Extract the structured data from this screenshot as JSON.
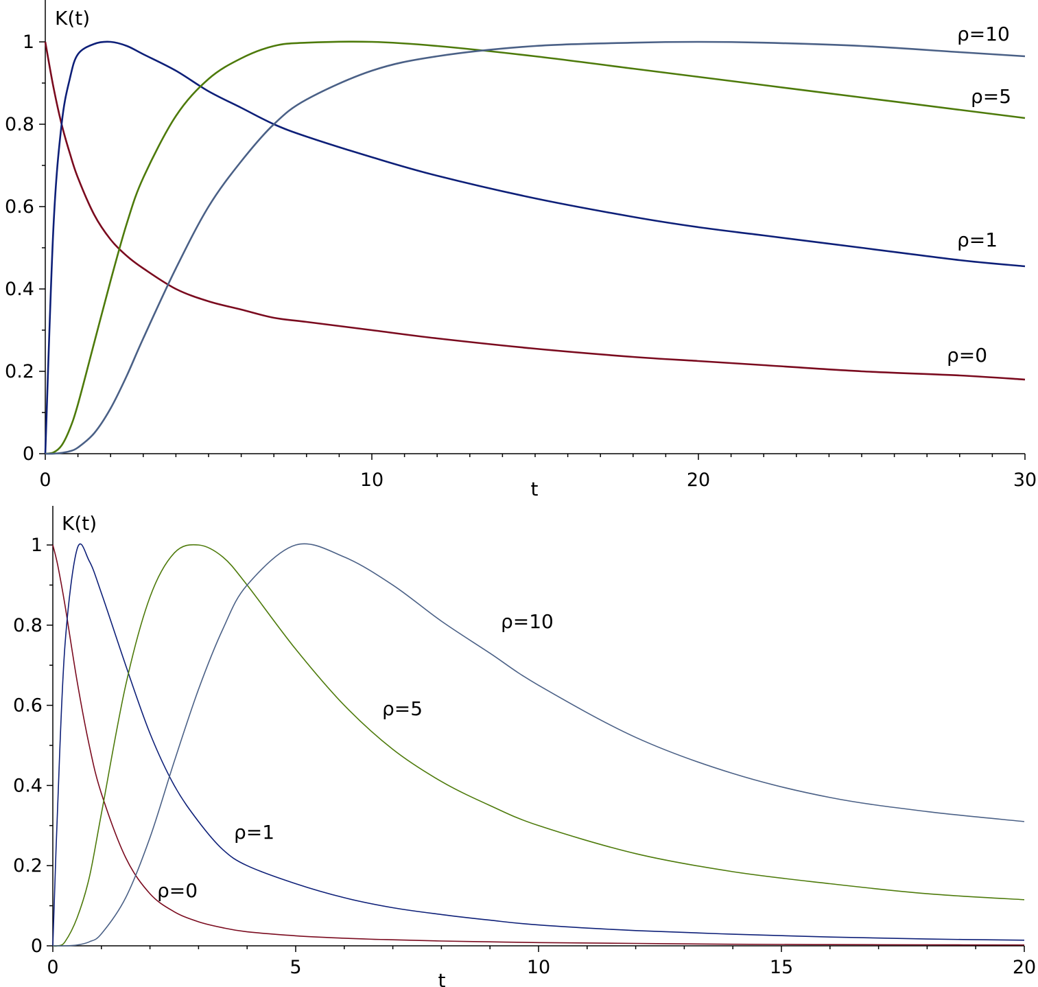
{
  "chart_data": [
    {
      "type": "line",
      "xlabel": "t",
      "ylabel": "K(t)",
      "xlim": [
        0,
        30
      ],
      "ylim": [
        0,
        1.1
      ],
      "xticks": [
        "0",
        "10",
        "20",
        "30"
      ],
      "yticks": [
        "0",
        "0.2",
        "0.4",
        "0.6",
        "0.8",
        "1"
      ],
      "grid": false,
      "legend": "inline labels at right",
      "colors": {
        "ρ=0": "#7a0a1e",
        "ρ=1": "#0d1f78",
        "ρ=5": "#4d7a0a",
        "ρ=10": "#4a6086"
      },
      "x": [
        0,
        0.25,
        0.5,
        0.75,
        1,
        1.5,
        2,
        2.5,
        3,
        4,
        5,
        6,
        7,
        8,
        10,
        12,
        15,
        18,
        20,
        22,
        25,
        28,
        30
      ],
      "series": [
        {
          "name": "ρ=0",
          "values": [
            1.0,
            0.89,
            0.8,
            0.73,
            0.67,
            0.58,
            0.52,
            0.48,
            0.45,
            0.4,
            0.37,
            0.35,
            0.33,
            0.32,
            0.3,
            0.28,
            0.255,
            0.235,
            0.225,
            0.215,
            0.2,
            0.19,
            0.18
          ]
        },
        {
          "name": "ρ=1",
          "values": [
            0.0,
            0.55,
            0.8,
            0.91,
            0.97,
            0.995,
            1.0,
            0.99,
            0.97,
            0.93,
            0.88,
            0.84,
            0.8,
            0.77,
            0.72,
            0.675,
            0.62,
            0.575,
            0.55,
            0.53,
            0.5,
            0.47,
            0.455
          ]
        },
        {
          "name": "ρ=5",
          "values": [
            0.0,
            0.003,
            0.02,
            0.06,
            0.12,
            0.27,
            0.42,
            0.56,
            0.67,
            0.82,
            0.91,
            0.96,
            0.99,
            0.998,
            1.0,
            0.99,
            0.965,
            0.935,
            0.915,
            0.895,
            0.865,
            0.835,
            0.815
          ]
        },
        {
          "name": "ρ=10",
          "values": [
            0.0,
            0.0,
            0.002,
            0.006,
            0.015,
            0.05,
            0.11,
            0.19,
            0.28,
            0.45,
            0.6,
            0.71,
            0.8,
            0.86,
            0.93,
            0.965,
            0.99,
            0.998,
            1.0,
            0.998,
            0.99,
            0.975,
            0.965
          ]
        }
      ]
    },
    {
      "type": "line",
      "xlabel": "t",
      "ylabel": "K(t)",
      "xlim": [
        0,
        20
      ],
      "ylim": [
        0,
        1.1
      ],
      "xticks": [
        "0",
        "5",
        "10",
        "15",
        "20"
      ],
      "yticks": [
        "0",
        "0.2",
        "0.4",
        "0.6",
        "0.8",
        "1"
      ],
      "grid": false,
      "legend": "inline labels on curves",
      "colors": {
        "ρ=0": "#7a0a1e",
        "ρ=1": "#0d1f78",
        "ρ=5": "#4d7a0a",
        "ρ=10": "#4a6086"
      },
      "x": [
        0,
        0.1,
        0.25,
        0.5,
        0.75,
        1,
        1.5,
        2,
        2.5,
        3,
        3.5,
        4,
        5,
        6,
        7,
        8,
        9,
        10,
        12,
        14,
        16,
        18,
        20
      ],
      "series": [
        {
          "name": "ρ=0",
          "values": [
            1.0,
            0.95,
            0.85,
            0.66,
            0.5,
            0.38,
            0.22,
            0.13,
            0.085,
            0.06,
            0.045,
            0.035,
            0.025,
            0.019,
            0.015,
            0.012,
            0.01,
            0.008,
            0.006,
            0.004,
            0.003,
            0.0025,
            0.002
          ]
        },
        {
          "name": "ρ=1",
          "values": [
            0.0,
            0.35,
            0.75,
            0.99,
            0.96,
            0.88,
            0.7,
            0.53,
            0.4,
            0.31,
            0.24,
            0.2,
            0.155,
            0.12,
            0.095,
            0.078,
            0.064,
            0.052,
            0.038,
            0.029,
            0.022,
            0.017,
            0.014
          ]
        },
        {
          "name": "ρ=5",
          "values": [
            0.0,
            0.0,
            0.01,
            0.07,
            0.17,
            0.33,
            0.65,
            0.87,
            0.98,
            1.0,
            0.97,
            0.9,
            0.74,
            0.6,
            0.49,
            0.41,
            0.35,
            0.3,
            0.23,
            0.185,
            0.155,
            0.13,
            0.115
          ]
        },
        {
          "name": "ρ=10",
          "values": [
            0.0,
            0.0,
            0.0,
            0.002,
            0.01,
            0.03,
            0.12,
            0.27,
            0.46,
            0.64,
            0.79,
            0.9,
            1.0,
            0.97,
            0.9,
            0.81,
            0.73,
            0.65,
            0.52,
            0.43,
            0.37,
            0.335,
            0.31
          ]
        }
      ]
    }
  ]
}
